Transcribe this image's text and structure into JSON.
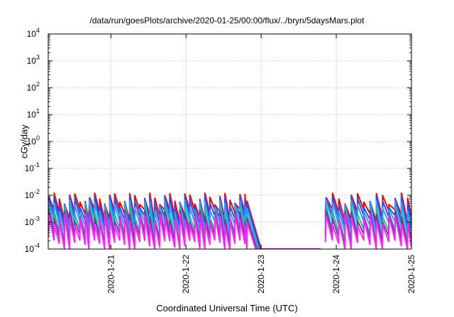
{
  "chart_data": {
    "type": "line",
    "title": "/data/run/goesPlots/archive/2020-01-25/00:00/flux/../bryn/5daysMars.plot",
    "xlabel": "Coordinated Universal Time (UTC)",
    "ylabel": "cGy/day",
    "x_unit": "days",
    "xlim": [
      "2020-01-20 04:00",
      "2020-01-25 00:00"
    ],
    "ylim": [
      0.0001,
      10000
    ],
    "y_scale": "log",
    "grid": true,
    "x_tick_labels": [
      "2020-1-21",
      "2020-1-22",
      "2020-1-23",
      "2020-1-24",
      "2020-1-25"
    ],
    "y_tick_labels": [
      {
        "base": "10",
        "exp": "-4"
      },
      {
        "base": "10",
        "exp": "-3"
      },
      {
        "base": "10",
        "exp": "-2"
      },
      {
        "base": "10",
        "exp": "-1"
      },
      {
        "base": "10",
        "exp": "0"
      },
      {
        "base": "10",
        "exp": "1"
      },
      {
        "base": "10",
        "exp": "2"
      },
      {
        "base": "10",
        "exp": "3"
      },
      {
        "base": "10",
        "exp": "4"
      }
    ],
    "segments": [
      {
        "start": "2020-01-20 04:00",
        "end": "2020-01-20 17:00",
        "period_hours": 1.65
      },
      {
        "start": "2020-01-20 17:00",
        "end": "2020-01-22 19:30",
        "period_hours": 1.6
      },
      {
        "start": "2020-01-23 20:30",
        "end": "2020-01-25 00:00",
        "period_hours": 2.0
      }
    ],
    "decay_end": {
      "from": "2020-01-22 19:30",
      "to": "2020-01-23 00:00",
      "final": 0.0001
    },
    "floor_line": {
      "from": "2020-01-23 00:00",
      "to": "2020-01-23 19:00",
      "value": 0.0001
    },
    "series": [
      {
        "color": "#ff0000",
        "peak": 0.011,
        "trough": 0.0025
      },
      {
        "color": "#1f4fff",
        "peak": 0.0085,
        "trough": 0.0015
      },
      {
        "color": "#3399ff",
        "peak": 0.006,
        "trough": 0.0009
      },
      {
        "color": "#22bb99",
        "peak": 0.0035,
        "trough": 0.00045
      },
      {
        "color": "#7733aa",
        "peak": 0.0025,
        "trough": 0.0003
      },
      {
        "color": "#ff22ff",
        "peak": 0.0018,
        "trough": 0.00018
      }
    ]
  }
}
